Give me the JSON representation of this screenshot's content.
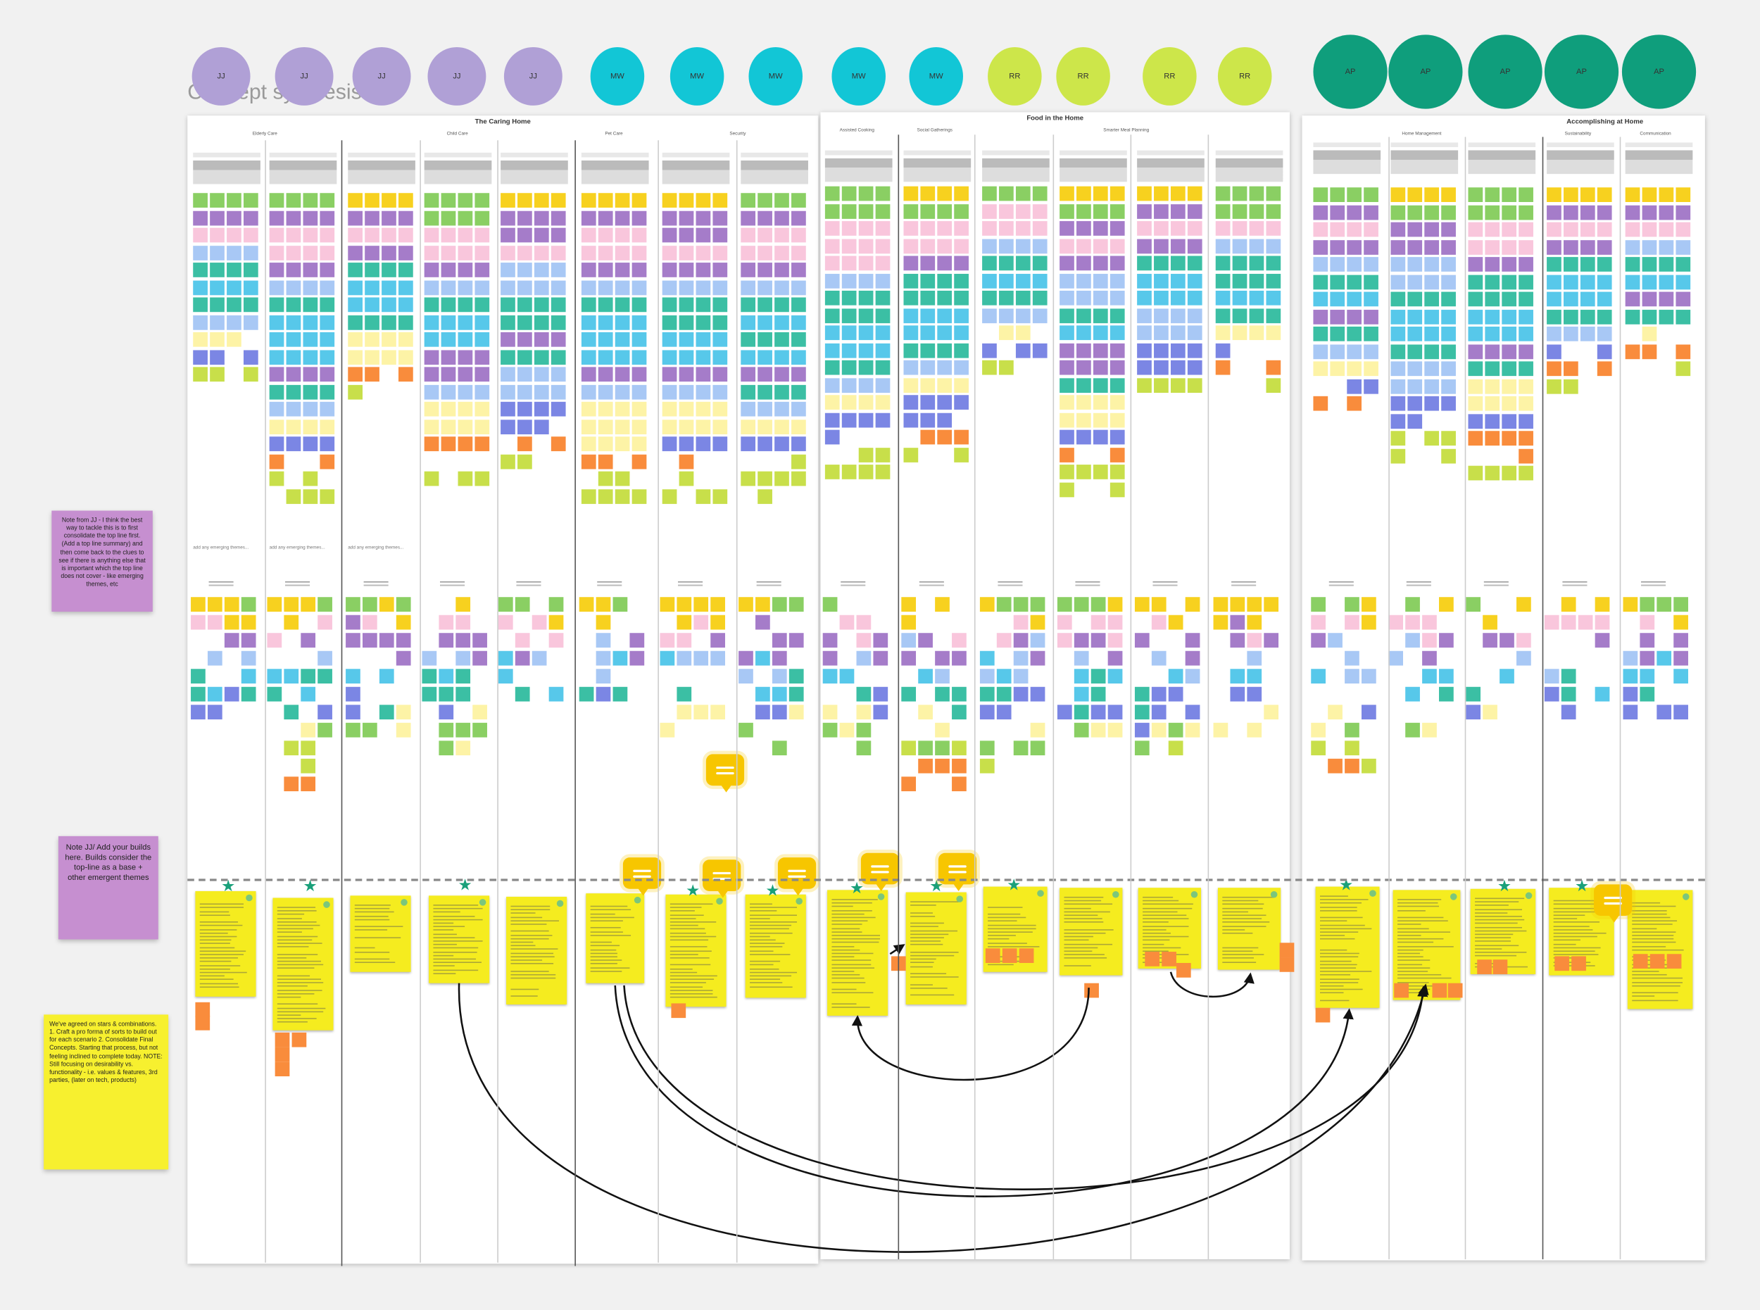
{
  "page_title": "Concept synthesis",
  "avatars": [
    {
      "initials": "JJ",
      "color": "#b0a0d6"
    },
    {
      "initials": "JJ",
      "color": "#b0a0d6"
    },
    {
      "initials": "JJ",
      "color": "#b0a0d6"
    },
    {
      "initials": "JJ",
      "color": "#b0a0d6"
    },
    {
      "initials": "JJ",
      "color": "#b0a0d6"
    },
    {
      "initials": "MW",
      "color": "#12c6d6"
    },
    {
      "initials": "MW",
      "color": "#12c6d6"
    },
    {
      "initials": "MW",
      "color": "#12c6d6"
    },
    {
      "initials": "MW",
      "color": "#12c6d6"
    },
    {
      "initials": "MW",
      "color": "#12c6d6"
    },
    {
      "initials": "RR",
      "color": "#cde64a"
    },
    {
      "initials": "RR",
      "color": "#cde64a"
    },
    {
      "initials": "RR",
      "color": "#cde64a"
    },
    {
      "initials": "RR",
      "color": "#cde64a"
    },
    {
      "initials": "AP",
      "color": "#0f9e7c"
    },
    {
      "initials": "AP",
      "color": "#0f9e7c"
    },
    {
      "initials": "AP",
      "color": "#0f9e7c"
    },
    {
      "initials": "AP",
      "color": "#0f9e7c"
    },
    {
      "initials": "AP",
      "color": "#0f9e7c"
    }
  ],
  "boards": [
    {
      "title": "The Caring Home",
      "columns": [
        "Elderly Care",
        "Child Care",
        "Pet Care",
        "Security"
      ]
    },
    {
      "title": "Food in the Home",
      "columns": [
        "Assisted Cooking",
        "Social Gatherings",
        "Smarter Meal Planning"
      ]
    },
    {
      "title": "Accomplishing at Home",
      "columns": [
        "Home Management",
        "Sustainability",
        "Communication"
      ]
    }
  ],
  "emerging_label": "add any emerging themes...",
  "side_notes": {
    "note1": "Note from JJ - I think the best way to tackle this is to first consolidate the top line first. (Add a top line summary) and then come back to the clues to see if there is anything else that is important which the top line does not cover - like emerging themes, etc",
    "note2": "Note JJ/ Add your builds here. Builds consider the top-line as a base + other emergent themes",
    "note3": "We've agreed on stars & combinations. 1. Craft a pro forma of sorts to build out for each scenario 2. Consolidate Final Concepts. Starting that process, but not feeling inclined to complete today. NOTE: Still focusing on desirability vs. functionality - i.e. values & features, 3rd parties, (later on tech, products)"
  },
  "colors": {
    "yellow": "#f7d11f",
    "green": "#8acf63",
    "purple": "#a57cc9",
    "pink": "#f9c6dc",
    "blue": "#a8c8f5",
    "cyan": "#57c8ea",
    "teal": "#3bbfa4",
    "indigo": "#7b86e4",
    "lightyellow": "#fdf3a6",
    "lime": "#c8df4a",
    "orange": "#f98c3c",
    "card": "#f5ec1f"
  }
}
